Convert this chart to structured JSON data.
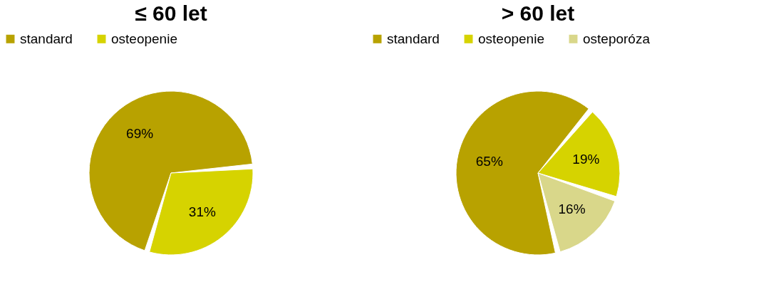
{
  "chart_data": [
    {
      "type": "pie",
      "title": "≤ 60 let",
      "categories": [
        "standard",
        "osteopenie"
      ],
      "values": [
        69,
        31
      ],
      "colors": [
        "#b8a200",
        "#d6d300"
      ],
      "value_labels": [
        "69%",
        "31%"
      ],
      "legend": "top"
    },
    {
      "type": "pie",
      "title": "> 60 let",
      "categories": [
        "standard",
        "osteopenie",
        "osteporóza"
      ],
      "values": [
        65,
        19,
        16
      ],
      "colors": [
        "#b8a200",
        "#d6d300",
        "#d9d78a"
      ],
      "value_labels": [
        "65%",
        "19%",
        "16%"
      ],
      "legend": "top"
    }
  ]
}
